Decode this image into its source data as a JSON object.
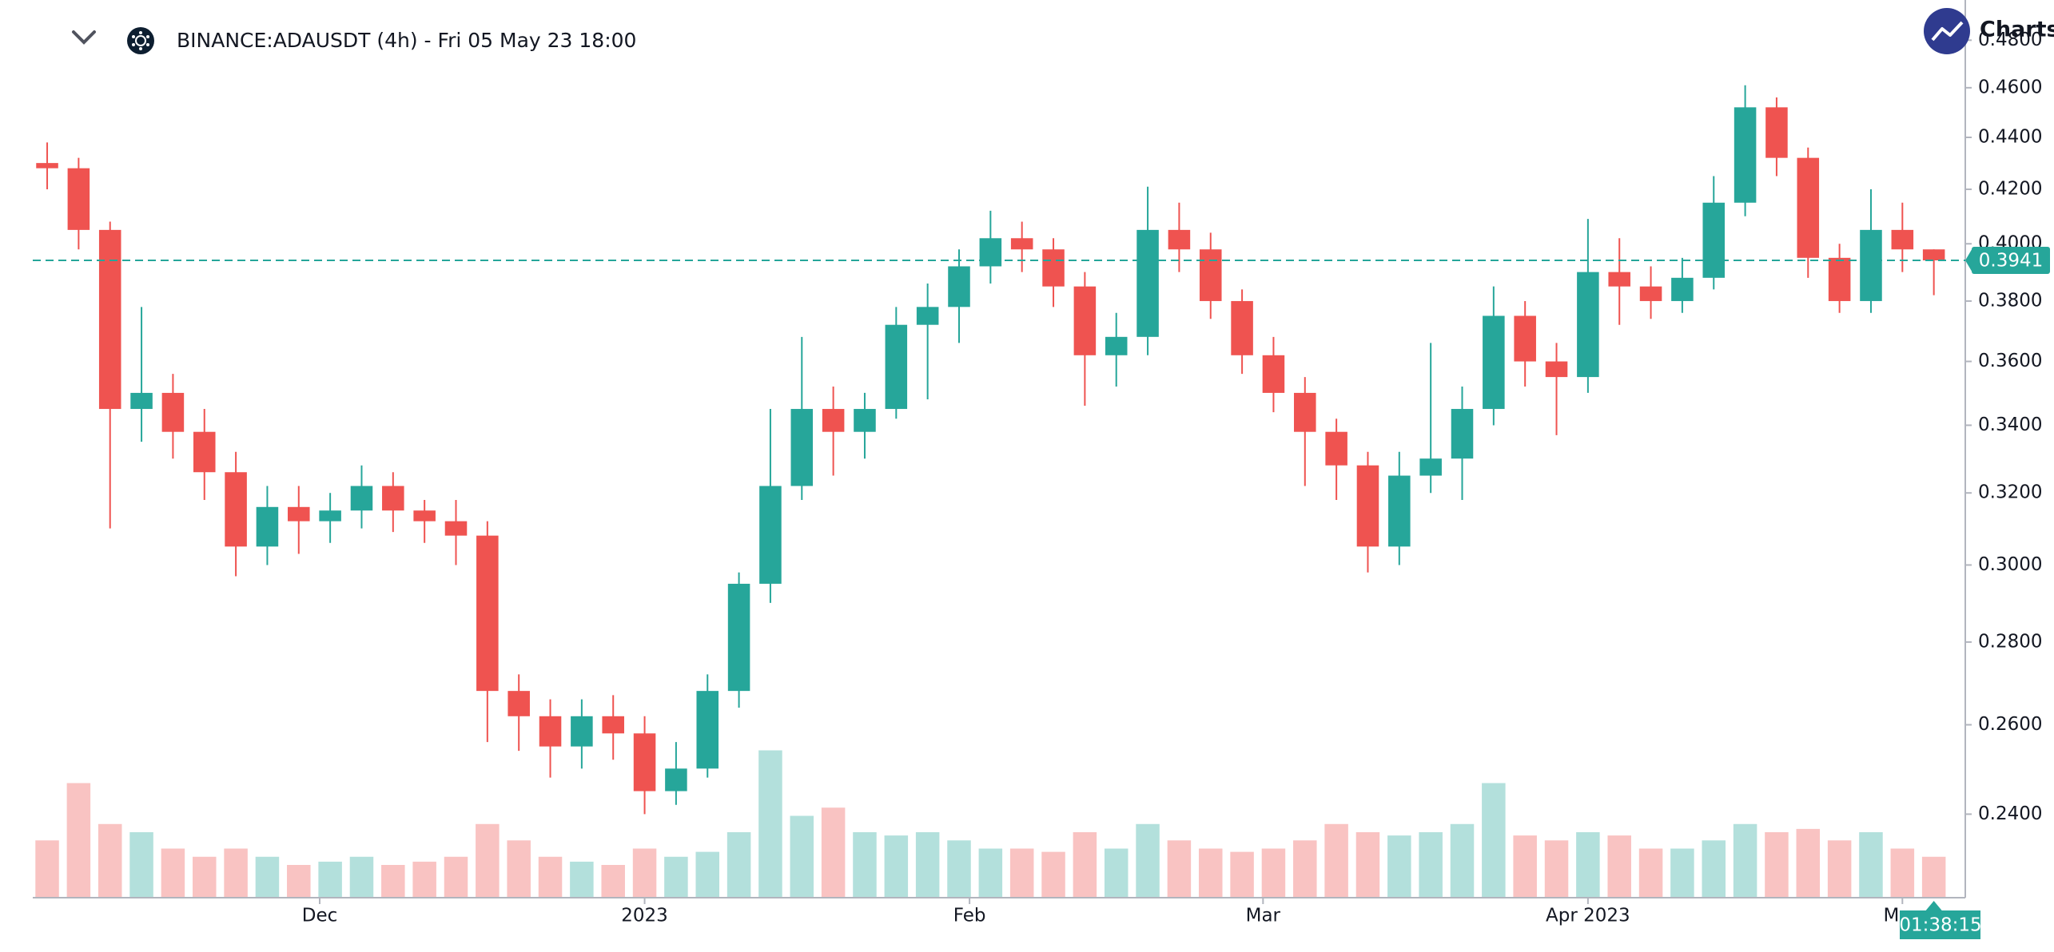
{
  "chart_data": {
    "type": "candlestick",
    "title": "BINANCE:ADAUSDT (4h) - Fri 05 May 23 18:00",
    "brand": "Charts",
    "countdown": "01:38:15",
    "ylog": true,
    "up_color": "#26a69a",
    "down_color": "#ef5350",
    "ylim": [
      0.2227,
      0.4976
    ],
    "yticks": [
      {
        "value": 0.24,
        "label": "0.2400"
      },
      {
        "value": 0.26,
        "label": "0.2600"
      },
      {
        "value": 0.28,
        "label": "0.2800"
      },
      {
        "value": 0.3,
        "label": "0.3000"
      },
      {
        "value": 0.32,
        "label": "0.3200"
      },
      {
        "value": 0.34,
        "label": "0.3400"
      },
      {
        "value": 0.36,
        "label": "0.3600"
      },
      {
        "value": 0.38,
        "label": "0.3800"
      },
      {
        "value": 0.4,
        "label": "0.4000"
      },
      {
        "value": 0.42,
        "label": "0.4200"
      },
      {
        "value": 0.44,
        "label": "0.4400"
      },
      {
        "value": 0.46,
        "label": "0.4600"
      },
      {
        "value": 0.48,
        "label": "0.4800"
      }
    ],
    "xlim": [
      -1.375,
      183
    ],
    "xticks": [
      {
        "value": 26,
        "label": "Dec"
      },
      {
        "value": 57,
        "label": "2023"
      },
      {
        "value": 88,
        "label": "Feb"
      },
      {
        "value": 116,
        "label": "Mar"
      },
      {
        "value": 147,
        "label": "Apr 2023"
      },
      {
        "value": 177,
        "label": "May"
      }
    ],
    "volume_lim": [
      0,
      100
    ],
    "candles": {
      "x": [
        0,
        3,
        6,
        9,
        12,
        15,
        18,
        21,
        24,
        27,
        30,
        33,
        36,
        39,
        42,
        45,
        48,
        51,
        54,
        57,
        60,
        63,
        66,
        69,
        72,
        75,
        78,
        81,
        84,
        87,
        90,
        93,
        96,
        99,
        102,
        105,
        108,
        111,
        114,
        117,
        120,
        123,
        126,
        129,
        132,
        135,
        138,
        141,
        144,
        147,
        150,
        153,
        156,
        159,
        162,
        165,
        168,
        171,
        174,
        177,
        180
      ],
      "open": [
        0.43,
        0.428,
        0.405,
        0.345,
        0.35,
        0.338,
        0.326,
        0.305,
        0.316,
        0.312,
        0.315,
        0.322,
        0.315,
        0.312,
        0.308,
        0.268,
        0.262,
        0.255,
        0.262,
        0.258,
        0.245,
        0.25,
        0.268,
        0.295,
        0.322,
        0.345,
        0.338,
        0.345,
        0.372,
        0.378,
        0.392,
        0.402,
        0.398,
        0.385,
        0.362,
        0.368,
        0.405,
        0.398,
        0.38,
        0.362,
        0.35,
        0.338,
        0.328,
        0.305,
        0.325,
        0.33,
        0.345,
        0.375,
        0.36,
        0.355,
        0.39,
        0.385,
        0.38,
        0.388,
        0.415,
        0.452,
        0.432,
        0.395,
        0.38,
        0.405,
        0.398
      ],
      "high": [
        0.438,
        0.432,
        0.408,
        0.378,
        0.356,
        0.345,
        0.332,
        0.322,
        0.322,
        0.32,
        0.328,
        0.326,
        0.318,
        0.318,
        0.312,
        0.272,
        0.266,
        0.266,
        0.267,
        0.262,
        0.256,
        0.272,
        0.298,
        0.345,
        0.368,
        0.352,
        0.35,
        0.378,
        0.386,
        0.398,
        0.412,
        0.408,
        0.402,
        0.39,
        0.376,
        0.421,
        0.415,
        0.404,
        0.384,
        0.368,
        0.355,
        0.342,
        0.332,
        0.332,
        0.366,
        0.352,
        0.385,
        0.38,
        0.366,
        0.409,
        0.402,
        0.392,
        0.395,
        0.425,
        0.461,
        0.456,
        0.436,
        0.4,
        0.42,
        0.415,
        0.398
      ],
      "low": [
        0.42,
        0.398,
        0.31,
        0.335,
        0.33,
        0.318,
        0.297,
        0.3,
        0.303,
        0.306,
        0.31,
        0.309,
        0.306,
        0.3,
        0.256,
        0.254,
        0.248,
        0.25,
        0.252,
        0.24,
        0.242,
        0.248,
        0.264,
        0.29,
        0.318,
        0.325,
        0.33,
        0.342,
        0.348,
        0.366,
        0.386,
        0.39,
        0.378,
        0.346,
        0.352,
        0.362,
        0.39,
        0.374,
        0.356,
        0.344,
        0.322,
        0.318,
        0.298,
        0.3,
        0.32,
        0.318,
        0.34,
        0.352,
        0.337,
        0.35,
        0.372,
        0.374,
        0.376,
        0.384,
        0.41,
        0.425,
        0.388,
        0.376,
        0.376,
        0.39,
        0.382
      ],
      "close": [
        0.428,
        0.405,
        0.345,
        0.35,
        0.338,
        0.326,
        0.305,
        0.316,
        0.312,
        0.315,
        0.322,
        0.315,
        0.312,
        0.308,
        0.268,
        0.262,
        0.255,
        0.262,
        0.258,
        0.245,
        0.25,
        0.268,
        0.295,
        0.322,
        0.345,
        0.338,
        0.345,
        0.372,
        0.378,
        0.392,
        0.402,
        0.398,
        0.385,
        0.362,
        0.368,
        0.405,
        0.398,
        0.38,
        0.362,
        0.35,
        0.338,
        0.328,
        0.305,
        0.325,
        0.33,
        0.345,
        0.375,
        0.36,
        0.355,
        0.39,
        0.385,
        0.38,
        0.388,
        0.415,
        0.452,
        0.432,
        0.395,
        0.38,
        0.405,
        0.398,
        0.3941
      ],
      "volume": [
        35,
        70,
        45,
        40,
        30,
        25,
        30,
        25,
        20,
        22,
        25,
        20,
        22,
        25,
        45,
        35,
        25,
        22,
        20,
        30,
        25,
        28,
        40,
        90,
        50,
        55,
        40,
        38,
        40,
        35,
        30,
        30,
        28,
        40,
        30,
        45,
        35,
        30,
        28,
        30,
        35,
        45,
        40,
        38,
        40,
        45,
        70,
        38,
        35,
        40,
        38,
        30,
        30,
        35,
        45,
        40,
        42,
        35,
        40,
        30,
        25
      ]
    }
  }
}
